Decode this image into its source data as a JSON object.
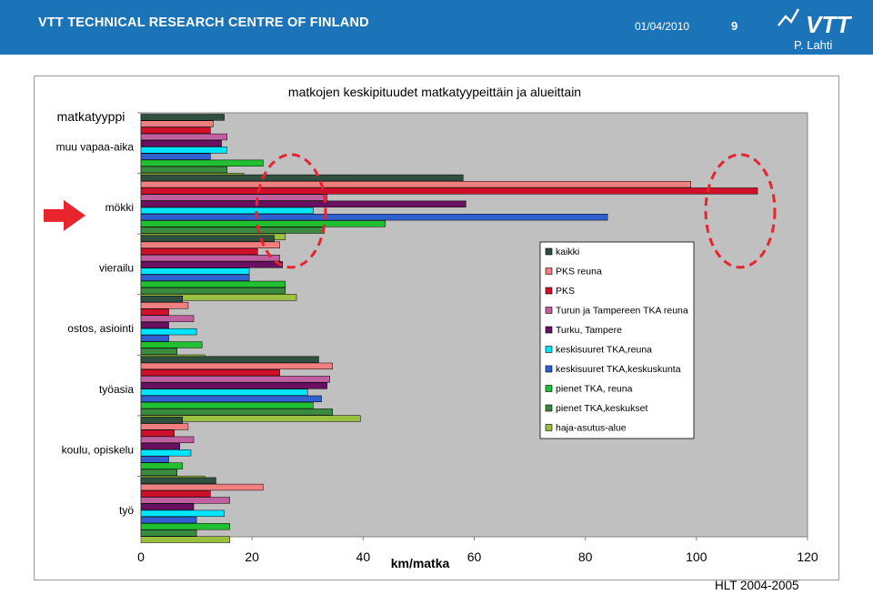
{
  "header": {
    "organization": "VTT TECHNICAL RESEARCH CENTRE OF FINLAND",
    "date": "01/04/2010",
    "page_number": "9",
    "author": "P. Lahti",
    "logo_text": "VTT"
  },
  "footer": {
    "source": "HLT 2004-2005"
  },
  "colors": {
    "header_bg": "#1b73b8",
    "plot_bg": "#c0c0c0",
    "highlight_circle": "#e8242c",
    "arrow": "#e8242c"
  },
  "chart_data": {
    "type": "bar",
    "orientation": "horizontal",
    "title": "matkojen keskipituudet matkatyypeittäin ja alueittain",
    "category_axis_title": "matkatyyppi",
    "xlabel": "km/matka",
    "xlim": [
      0,
      120
    ],
    "xticks": [
      0,
      20,
      40,
      60,
      80,
      100,
      120
    ],
    "grid": false,
    "legend_position": "right-inside",
    "highlighted_category": "mökki",
    "categories": [
      "muu vapaa-aika",
      "mökki",
      "vierailu",
      "ostos, asiointi",
      "työasia",
      "koulu, opiskelu",
      "työ"
    ],
    "series": [
      {
        "name": "kaikki",
        "color": "#2f4f3f",
        "values": [
          15,
          58,
          24,
          7.5,
          32,
          7.5,
          13.5
        ]
      },
      {
        "name": "PKS reuna",
        "color": "#f08080",
        "values": [
          13,
          99,
          25,
          8.5,
          34.5,
          8.5,
          22
        ]
      },
      {
        "name": "PKS",
        "color": "#d0102a",
        "values": [
          12.5,
          111,
          21,
          5,
          25,
          6,
          12.5
        ]
      },
      {
        "name": "Turun ja Tampereen TKA reuna",
        "color": "#c060a0",
        "values": [
          15.5,
          33.5,
          25,
          9.5,
          34,
          9.5,
          16
        ]
      },
      {
        "name": "Turku, Tampere",
        "color": "#6a1060",
        "values": [
          14.5,
          58.5,
          25.5,
          5,
          33.5,
          7,
          9.5
        ]
      },
      {
        "name": "keskisuuret TKA,reuna",
        "color": "#00e5ff",
        "values": [
          15.5,
          31,
          19.5,
          10,
          30,
          9,
          15
        ]
      },
      {
        "name": "keskisuuret TKA,keskuskunta",
        "color": "#3060d0",
        "values": [
          12.5,
          84,
          19.5,
          5,
          32.5,
          5,
          10
        ]
      },
      {
        "name": "pienet TKA, reuna",
        "color": "#20c030",
        "values": [
          22,
          44,
          26,
          11,
          31,
          7.5,
          16
        ]
      },
      {
        "name": "pienet TKA,keskukset",
        "color": "#3a8a40",
        "values": [
          15.5,
          33,
          26,
          6.5,
          34.5,
          6.5,
          10
        ]
      },
      {
        "name": "haja-asutus-alue",
        "color": "#9ac040",
        "values": [
          18.5,
          26,
          28,
          11.5,
          39.5,
          11.5,
          16
        ]
      }
    ]
  }
}
